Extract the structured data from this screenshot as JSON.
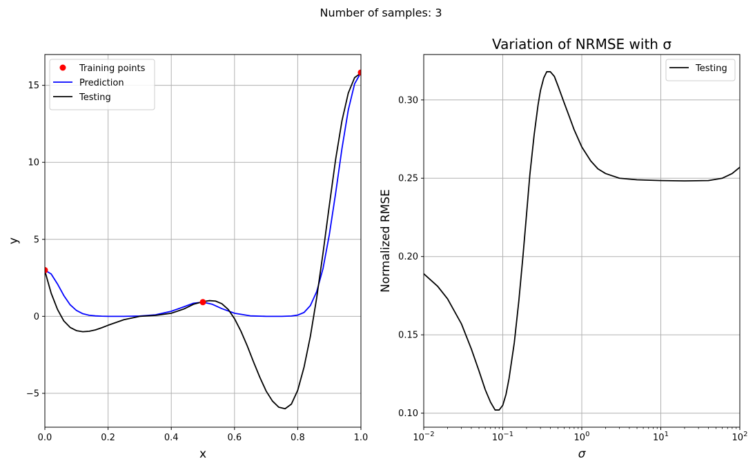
{
  "suptitle": "Number of samples: 3",
  "chart_data": [
    {
      "type": "line",
      "title": "",
      "xlabel": "x",
      "ylabel": "y",
      "xlim": [
        0.0,
        1.0
      ],
      "ylim": [
        -7.2,
        17.0
      ],
      "xscale": "linear",
      "xticks": [
        0.0,
        0.2,
        0.4,
        0.6,
        0.8,
        1.0
      ],
      "xtick_labels": [
        "0.0",
        "0.2",
        "0.4",
        "0.6",
        "0.8",
        "1.0"
      ],
      "yticks": [
        -5,
        0,
        5,
        10,
        15
      ],
      "ytick_labels": [
        "−5",
        "0",
        "5",
        "10",
        "15"
      ],
      "grid": true,
      "legend_position": "upper-left",
      "series": [
        {
          "name": "Training points",
          "kind": "scatter",
          "color": "#ff0000",
          "x": [
            0.0,
            0.5,
            1.0
          ],
          "y": [
            3.0,
            0.92,
            15.83
          ]
        },
        {
          "name": "Prediction",
          "kind": "line",
          "color": "#0000ff",
          "x": [
            0.0,
            0.02,
            0.04,
            0.06,
            0.08,
            0.1,
            0.12,
            0.14,
            0.16,
            0.18,
            0.2,
            0.25,
            0.3,
            0.35,
            0.4,
            0.44,
            0.47,
            0.5,
            0.53,
            0.56,
            0.6,
            0.65,
            0.7,
            0.75,
            0.78,
            0.8,
            0.82,
            0.84,
            0.86,
            0.88,
            0.9,
            0.92,
            0.94,
            0.96,
            0.98,
            1.0
          ],
          "y": [
            3.0,
            2.75,
            2.1,
            1.35,
            0.75,
            0.38,
            0.17,
            0.07,
            0.03,
            0.01,
            0.0,
            0.0,
            0.02,
            0.1,
            0.33,
            0.62,
            0.85,
            0.92,
            0.78,
            0.5,
            0.2,
            0.03,
            0.0,
            0.0,
            0.02,
            0.08,
            0.25,
            0.7,
            1.6,
            3.1,
            5.3,
            8.0,
            10.9,
            13.4,
            15.1,
            15.83
          ]
        },
        {
          "name": "Testing",
          "kind": "line",
          "color": "#000000",
          "x": [
            0.0,
            0.02,
            0.04,
            0.06,
            0.08,
            0.1,
            0.12,
            0.14,
            0.16,
            0.18,
            0.2,
            0.25,
            0.3,
            0.35,
            0.4,
            0.44,
            0.47,
            0.5,
            0.52,
            0.54,
            0.56,
            0.58,
            0.6,
            0.62,
            0.64,
            0.66,
            0.68,
            0.7,
            0.72,
            0.74,
            0.76,
            0.78,
            0.8,
            0.82,
            0.84,
            0.86,
            0.88,
            0.9,
            0.92,
            0.94,
            0.96,
            0.98,
            1.0
          ],
          "y": [
            2.95,
            1.5,
            0.45,
            -0.3,
            -0.72,
            -0.93,
            -1.0,
            -0.97,
            -0.88,
            -0.74,
            -0.58,
            -0.22,
            0.0,
            0.06,
            0.2,
            0.48,
            0.78,
            0.95,
            1.02,
            0.99,
            0.82,
            0.45,
            -0.15,
            -0.95,
            -1.9,
            -2.95,
            -3.95,
            -4.85,
            -5.5,
            -5.9,
            -6.0,
            -5.7,
            -4.8,
            -3.3,
            -1.3,
            1.2,
            4.1,
            7.2,
            10.2,
            12.7,
            14.5,
            15.5,
            15.8
          ]
        }
      ]
    },
    {
      "type": "line",
      "title": "Variation of NRMSE with σ",
      "xlabel": "σ",
      "ylabel": "Normalized RMSE",
      "xlim": [
        0.01,
        100
      ],
      "ylim": [
        0.091,
        0.329
      ],
      "xscale": "log",
      "xticks": [
        0.01,
        0.1,
        1,
        10,
        100
      ],
      "xtick_labels": [
        {
          "base": "10",
          "exp": "−2"
        },
        {
          "base": "10",
          "exp": "−1"
        },
        {
          "base": "10",
          "exp": "0"
        },
        {
          "base": "10",
          "exp": "1"
        },
        {
          "base": "10",
          "exp": "2"
        }
      ],
      "yticks": [
        0.1,
        0.15,
        0.2,
        0.25,
        0.3
      ],
      "ytick_labels": [
        "0.10",
        "0.15",
        "0.20",
        "0.25",
        "0.30"
      ],
      "grid": true,
      "legend_position": "upper-right",
      "series": [
        {
          "name": "Testing",
          "kind": "line",
          "color": "#000000",
          "x": [
            0.01,
            0.015,
            0.02,
            0.03,
            0.04,
            0.05,
            0.06,
            0.07,
            0.08,
            0.09,
            0.1,
            0.11,
            0.12,
            0.14,
            0.16,
            0.18,
            0.2,
            0.22,
            0.25,
            0.28,
            0.3,
            0.33,
            0.36,
            0.4,
            0.45,
            0.5,
            0.6,
            0.7,
            0.8,
            1.0,
            1.3,
            1.6,
            2.0,
            3.0,
            5.0,
            10,
            20,
            40,
            60,
            80,
            100
          ],
          "y": [
            0.189,
            0.181,
            0.173,
            0.157,
            0.141,
            0.127,
            0.115,
            0.107,
            0.102,
            0.102,
            0.105,
            0.112,
            0.122,
            0.145,
            0.172,
            0.2,
            0.227,
            0.252,
            0.278,
            0.297,
            0.306,
            0.314,
            0.318,
            0.318,
            0.315,
            0.309,
            0.298,
            0.289,
            0.281,
            0.27,
            0.261,
            0.256,
            0.253,
            0.25,
            0.249,
            0.2485,
            0.2483,
            0.2485,
            0.25,
            0.253,
            0.257
          ]
        }
      ]
    }
  ]
}
